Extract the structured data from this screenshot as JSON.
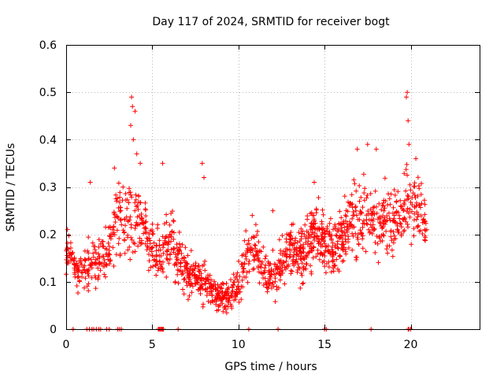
{
  "chart_data": {
    "type": "scatter",
    "title": "Day 117 of 2024, SRMTID for receiver bogt",
    "xlabel": "GPS time / hours",
    "ylabel": "SRMTID / TECUs",
    "xlim": [
      0,
      24
    ],
    "ylim": [
      0,
      0.6
    ],
    "x_ticks": [
      0,
      5,
      10,
      15,
      20
    ],
    "y_ticks": [
      0,
      0.1,
      0.2,
      0.3,
      0.4,
      0.5,
      0.6
    ],
    "x_tick_labels": [
      "0",
      "5",
      "10",
      "15",
      "20"
    ],
    "y_tick_labels": [
      "0",
      "0.1",
      "0.2",
      "0.3",
      "0.4",
      "0.5",
      "0.6"
    ],
    "grid": true,
    "marker": "+",
    "marker_color": "#ff0000",
    "series": [
      {
        "name": "SRMTID",
        "trend": {
          "x": [
            0,
            0.3,
            0.5,
            1.0,
            1.5,
            2.0,
            2.5,
            3.0,
            3.5,
            4.0,
            4.5,
            5.0,
            5.5,
            6.0,
            6.5,
            7.0,
            7.5,
            8.0,
            8.5,
            9.0,
            9.5,
            10.0,
            10.5,
            11.0,
            11.5,
            12.0,
            12.5,
            13.0,
            13.5,
            14.0,
            14.5,
            15.0,
            15.5,
            16.0,
            16.5,
            17.0,
            17.5,
            18.0,
            18.5,
            19.0,
            19.5,
            20.0,
            20.5,
            20.9
          ],
          "y": [
            0.17,
            0.16,
            0.12,
            0.13,
            0.14,
            0.15,
            0.17,
            0.24,
            0.22,
            0.24,
            0.22,
            0.17,
            0.15,
            0.2,
            0.15,
            0.12,
            0.11,
            0.1,
            0.08,
            0.07,
            0.07,
            0.09,
            0.15,
            0.17,
            0.12,
            0.11,
            0.14,
            0.17,
            0.15,
            0.18,
            0.2,
            0.19,
            0.16,
            0.2,
            0.22,
            0.23,
            0.24,
            0.22,
            0.23,
            0.22,
            0.25,
            0.27,
            0.25,
            0.23
          ],
          "spread": [
            0.04,
            0.04,
            0.03,
            0.04,
            0.05,
            0.05,
            0.05,
            0.08,
            0.07,
            0.08,
            0.06,
            0.05,
            0.05,
            0.06,
            0.05,
            0.04,
            0.04,
            0.04,
            0.03,
            0.03,
            0.03,
            0.04,
            0.05,
            0.05,
            0.05,
            0.04,
            0.05,
            0.05,
            0.05,
            0.06,
            0.06,
            0.06,
            0.06,
            0.06,
            0.07,
            0.07,
            0.07,
            0.06,
            0.06,
            0.06,
            0.07,
            0.07,
            0.06,
            0.05
          ]
        },
        "spikes": [
          {
            "x": 1.4,
            "y": 0.31
          },
          {
            "x": 2.8,
            "y": 0.34
          },
          {
            "x": 3.3,
            "y": 0.3
          },
          {
            "x": 3.8,
            "y": 0.49
          },
          {
            "x": 3.85,
            "y": 0.47
          },
          {
            "x": 4.0,
            "y": 0.46
          },
          {
            "x": 3.75,
            "y": 0.43
          },
          {
            "x": 3.9,
            "y": 0.4
          },
          {
            "x": 4.1,
            "y": 0.37
          },
          {
            "x": 4.3,
            "y": 0.35
          },
          {
            "x": 5.6,
            "y": 0.35
          },
          {
            "x": 7.9,
            "y": 0.35
          },
          {
            "x": 8.0,
            "y": 0.32
          },
          {
            "x": 10.8,
            "y": 0.24
          },
          {
            "x": 12.0,
            "y": 0.25
          },
          {
            "x": 14.4,
            "y": 0.31
          },
          {
            "x": 17.5,
            "y": 0.39
          },
          {
            "x": 16.9,
            "y": 0.38
          },
          {
            "x": 18.0,
            "y": 0.38
          },
          {
            "x": 19.8,
            "y": 0.5
          },
          {
            "x": 19.75,
            "y": 0.49
          },
          {
            "x": 19.85,
            "y": 0.44
          },
          {
            "x": 19.9,
            "y": 0.39
          },
          {
            "x": 20.3,
            "y": 0.36
          }
        ],
        "zero_markers_x": [
          0.4,
          1.2,
          1.35,
          1.5,
          1.6,
          1.75,
          1.9,
          2.0,
          2.35,
          2.5,
          3.0,
          3.1,
          3.2,
          5.35,
          5.4,
          5.45,
          5.5,
          5.55,
          5.6,
          5.65,
          6.5,
          10.6,
          12.3,
          15.0,
          15.1,
          17.7,
          19.85,
          19.9,
          20.0
        ],
        "x_range": [
          0,
          20.95
        ]
      }
    ]
  }
}
